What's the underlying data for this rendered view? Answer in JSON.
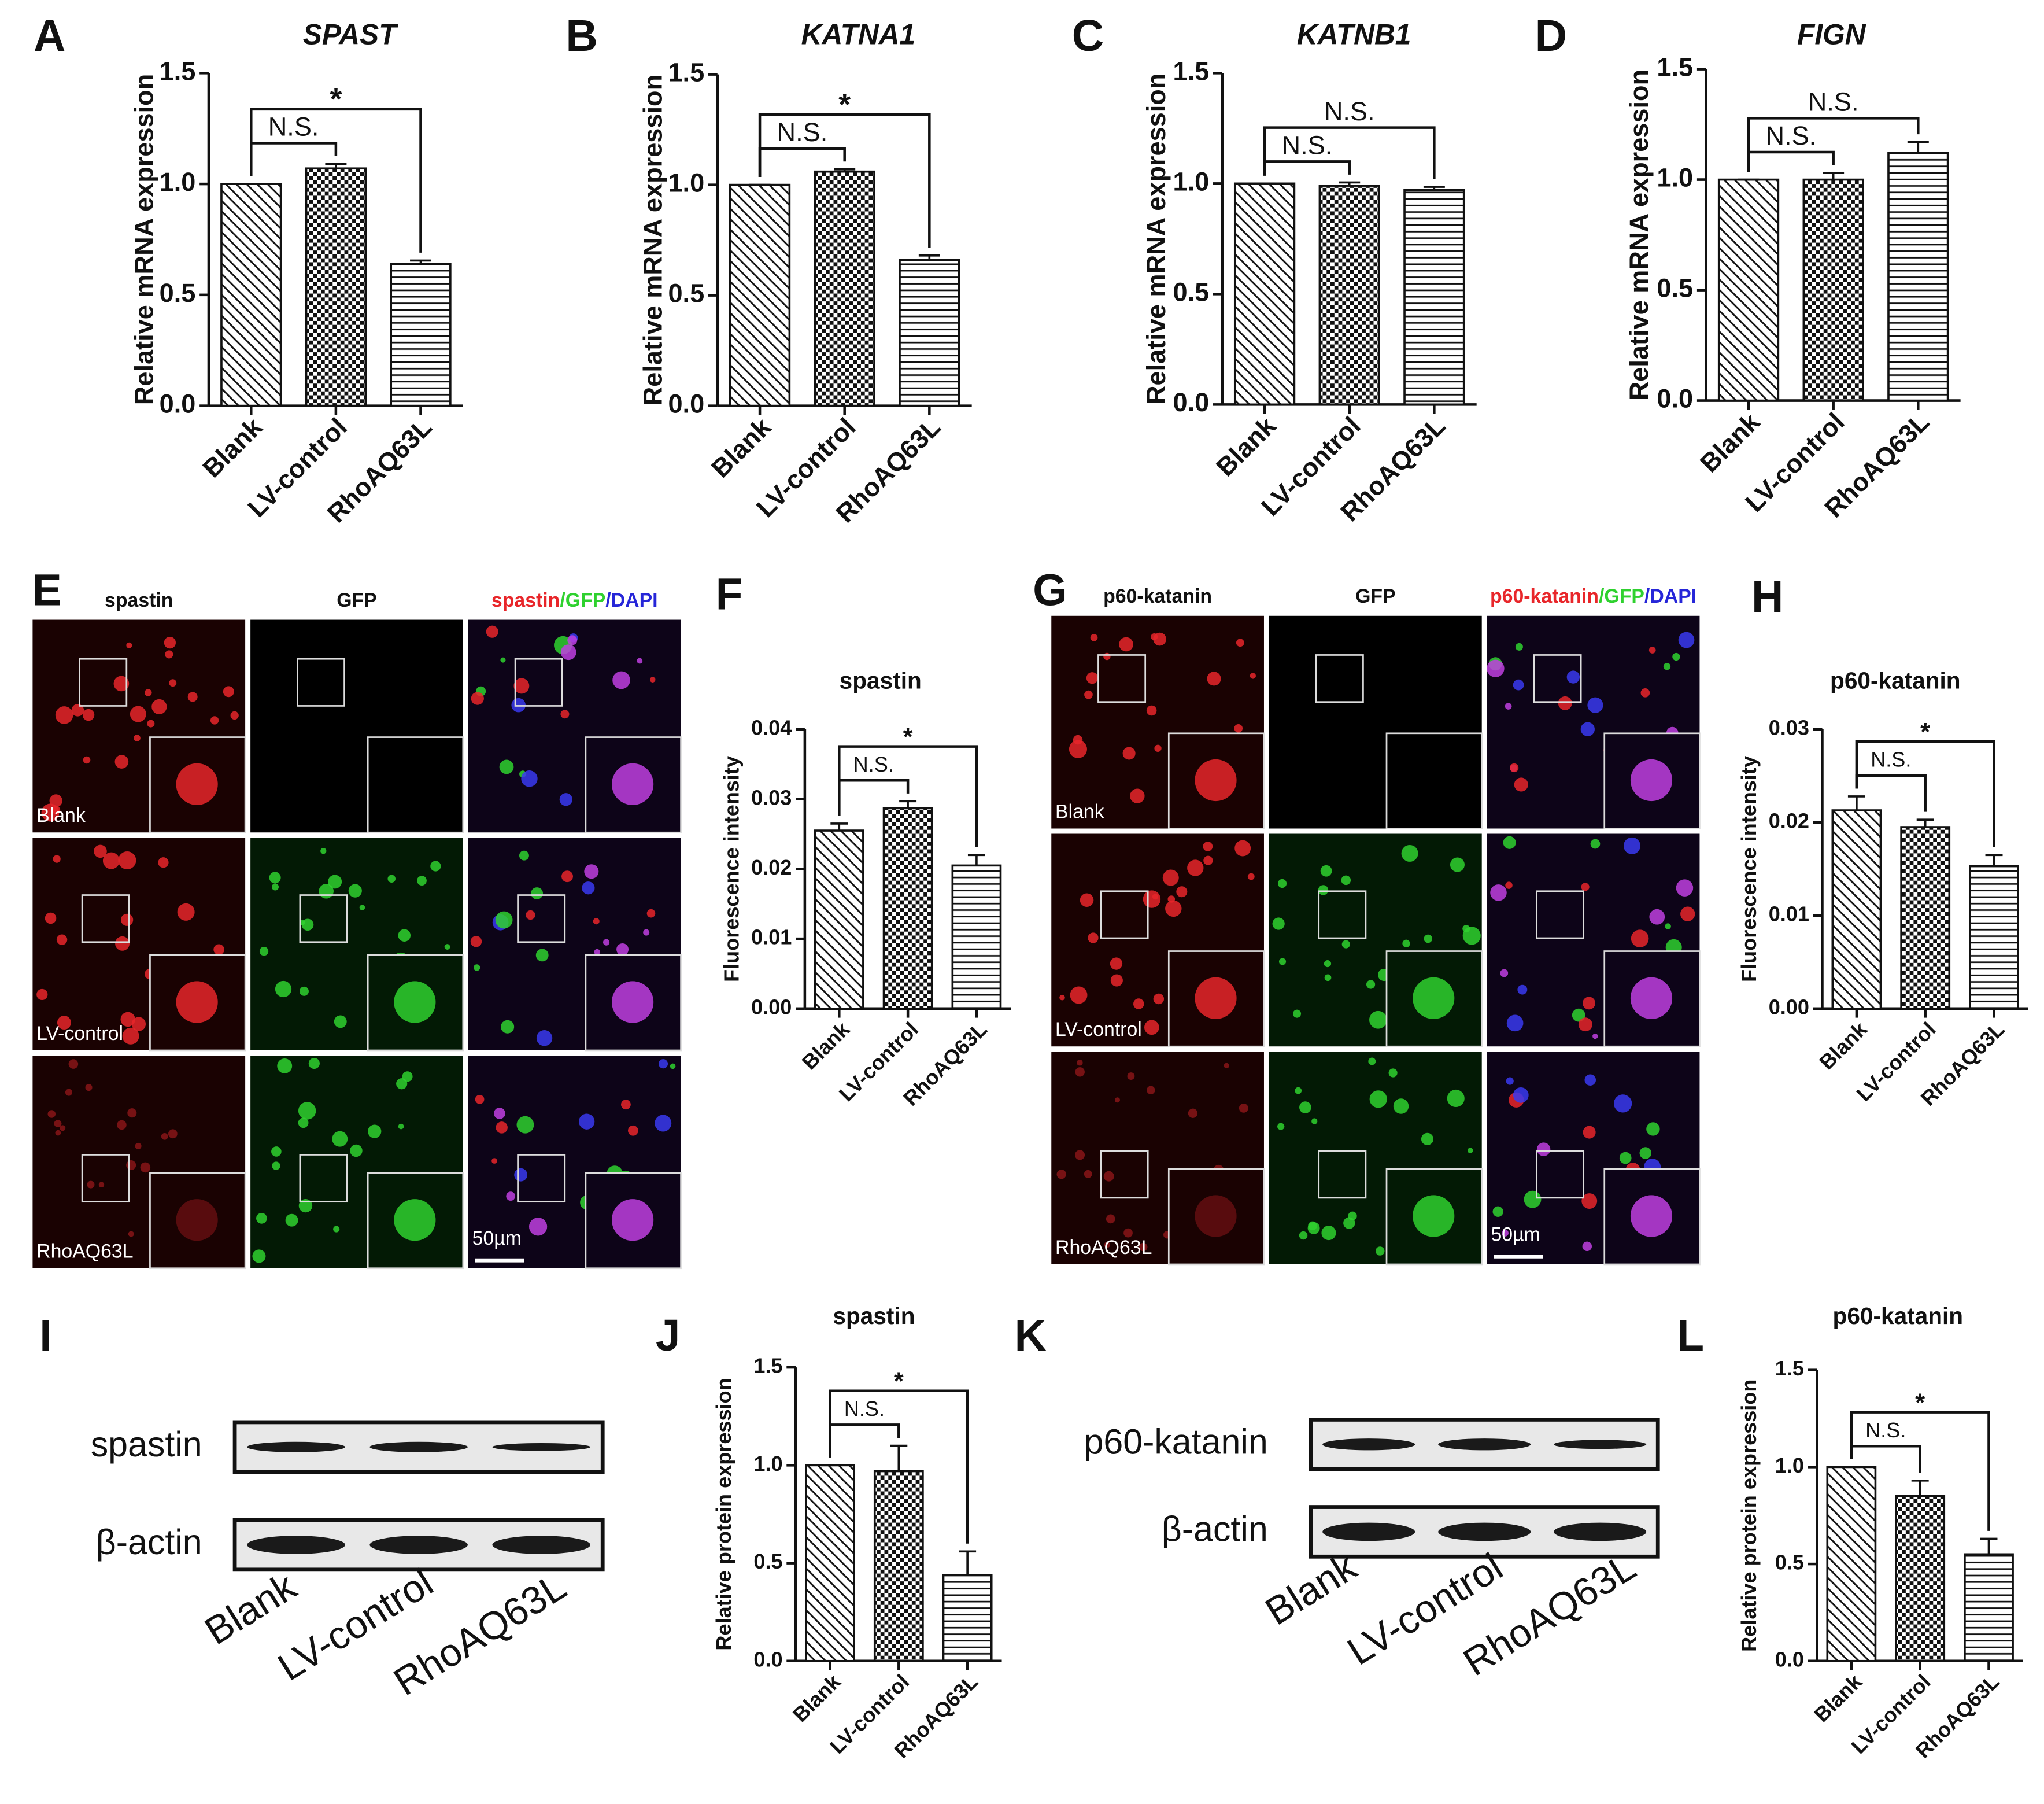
{
  "chart_data": [
    {
      "type": "bar",
      "letter": "A",
      "title": "SPAST",
      "title_style": "italic",
      "ylabel": "Relative mRNA expression",
      "categories": [
        "Blank",
        "LV-control",
        "RhoAQ63L"
      ],
      "values": [
        1.0,
        1.07,
        0.64
      ],
      "errors": [
        0,
        0.02,
        0.015
      ],
      "ylim": [
        0,
        1.5
      ],
      "yticks": [
        {
          "value": 0,
          "label": "0.0"
        },
        0.5,
        {
          "value": 1,
          "label": "1.0"
        },
        1.5
      ],
      "patterns": [
        "diagonal",
        "checker",
        "horizontal"
      ],
      "comparisons": [
        {
          "between": [
            "Blank",
            "LV-control"
          ],
          "label": "N.S."
        },
        {
          "between": [
            "Blank",
            "RhoAQ63L"
          ],
          "label": "*"
        }
      ]
    },
    {
      "type": "bar",
      "letter": "B",
      "title": "KATNA1",
      "title_style": "italic",
      "ylabel": "Relative mRNA expression",
      "categories": [
        "Blank",
        "LV-control",
        "RhoAQ63L"
      ],
      "values": [
        1.0,
        1.06,
        0.66
      ],
      "errors": [
        0,
        0.01,
        0.02
      ],
      "ylim": [
        0,
        1.5
      ],
      "yticks": [
        {
          "value": 0,
          "label": "0.0"
        },
        0.5,
        {
          "value": 1,
          "label": "1.0"
        },
        1.5
      ],
      "patterns": [
        "diagonal",
        "checker",
        "horizontal"
      ],
      "comparisons": [
        {
          "between": [
            "Blank",
            "LV-control"
          ],
          "label": "N.S."
        },
        {
          "between": [
            "Blank",
            "RhoAQ63L"
          ],
          "label": "*"
        }
      ]
    },
    {
      "type": "bar",
      "letter": "C",
      "title": "KATNB1",
      "title_style": "italic",
      "ylabel": "Relative mRNA expression",
      "categories": [
        "Blank",
        "LV-control",
        "RhoAQ63L"
      ],
      "values": [
        1.0,
        0.99,
        0.97
      ],
      "errors": [
        0,
        0.015,
        0.015
      ],
      "ylim": [
        0,
        1.5
      ],
      "yticks": [
        {
          "value": 0,
          "label": "0.0"
        },
        0.5,
        {
          "value": 1,
          "label": "1.0"
        },
        1.5
      ],
      "patterns": [
        "diagonal",
        "checker",
        "horizontal"
      ],
      "comparisons": [
        {
          "between": [
            "Blank",
            "LV-control"
          ],
          "label": "N.S."
        },
        {
          "between": [
            "Blank",
            "RhoAQ63L"
          ],
          "label": "N.S."
        }
      ]
    },
    {
      "type": "bar",
      "letter": "D",
      "title": "FIGN",
      "title_style": "italic",
      "ylabel": "Relative mRNA expression",
      "categories": [
        "Blank",
        "LV-control",
        "RhoAQ63L"
      ],
      "values": [
        1.0,
        1.0,
        1.12
      ],
      "errors": [
        0,
        0.03,
        0.05
      ],
      "ylim": [
        0,
        1.5
      ],
      "yticks": [
        {
          "value": 0,
          "label": "0.0"
        },
        0.5,
        {
          "value": 1,
          "label": "1.0"
        },
        1.5
      ],
      "patterns": [
        "diagonal",
        "checker",
        "horizontal"
      ],
      "comparisons": [
        {
          "between": [
            "Blank",
            "LV-control"
          ],
          "label": "N.S."
        },
        {
          "between": [
            "Blank",
            "RhoAQ63L"
          ],
          "label": "N.S."
        }
      ]
    },
    {
      "type": "bar",
      "letter": "F",
      "title": "spastin",
      "title_style": "bold",
      "ylabel": "Fluorescence intensity",
      "categories": [
        "Blank",
        "LV-control",
        "RhoAQ63L"
      ],
      "values": [
        0.0255,
        0.0287,
        0.0205
      ],
      "errors": [
        0.001,
        0.001,
        0.0015
      ],
      "ylim": [
        0,
        0.04
      ],
      "yticks": [
        {
          "value": 0,
          "label": "0.00"
        },
        0.01,
        0.02,
        0.03,
        0.04
      ],
      "patterns": [
        "diagonal",
        "checker",
        "horizontal"
      ],
      "comparisons": [
        {
          "between": [
            "Blank",
            "LV-control"
          ],
          "label": "N.S."
        },
        {
          "between": [
            "Blank",
            "RhoAQ63L"
          ],
          "label": "*"
        }
      ]
    },
    {
      "type": "bar",
      "letter": "H",
      "title": "p60-katanin",
      "title_style": "bold",
      "ylabel": "Fluorescence intensity",
      "categories": [
        "Blank",
        "LV-control",
        "RhoAQ63L"
      ],
      "values": [
        0.0213,
        0.0195,
        0.0153
      ],
      "errors": [
        0.0015,
        0.0008,
        0.0012
      ],
      "ylim": [
        0,
        0.03
      ],
      "yticks": [
        {
          "value": 0,
          "label": "0.00"
        },
        0.01,
        0.02,
        0.03
      ],
      "patterns": [
        "diagonal",
        "checker",
        "horizontal"
      ],
      "comparisons": [
        {
          "between": [
            "Blank",
            "LV-control"
          ],
          "label": "N.S."
        },
        {
          "between": [
            "Blank",
            "RhoAQ63L"
          ],
          "label": "*"
        }
      ]
    },
    {
      "type": "bar",
      "letter": "J",
      "title": "spastin",
      "title_style": "bold",
      "ylabel": "Relative protein expression",
      "categories": [
        "Blank",
        "LV-control",
        "RhoAQ63L"
      ],
      "values": [
        1.0,
        0.97,
        0.44
      ],
      "errors": [
        0,
        0.13,
        0.12
      ],
      "ylim": [
        0,
        1.5
      ],
      "yticks": [
        {
          "value": 0,
          "label": "0.0"
        },
        0.5,
        {
          "value": 1,
          "label": "1.0"
        },
        1.5
      ],
      "patterns": [
        "diagonal",
        "checker",
        "horizontal"
      ],
      "comparisons": [
        {
          "between": [
            "Blank",
            "LV-control"
          ],
          "label": "N.S."
        },
        {
          "between": [
            "Blank",
            "RhoAQ63L"
          ],
          "label": "*"
        }
      ]
    },
    {
      "type": "bar",
      "letter": "L",
      "title": "p60-katanin",
      "title_style": "bold",
      "ylabel": "Relative protein expression",
      "categories": [
        "Blank",
        "LV-control",
        "RhoAQ63L"
      ],
      "values": [
        1.0,
        0.85,
        0.55
      ],
      "errors": [
        0,
        0.08,
        0.08
      ],
      "ylim": [
        0,
        1.5
      ],
      "yticks": [
        {
          "value": 0,
          "label": "0.0"
        },
        0.5,
        {
          "value": 1,
          "label": "1.0"
        },
        1.5
      ],
      "patterns": [
        "diagonal",
        "checker",
        "horizontal"
      ],
      "comparisons": [
        {
          "between": [
            "Blank",
            "LV-control"
          ],
          "label": "N.S."
        },
        {
          "between": [
            "Blank",
            "RhoAQ63L"
          ],
          "label": "*"
        }
      ]
    }
  ],
  "microscopy": [
    {
      "letter": "E",
      "channels": [
        {
          "text": "spastin",
          "color": "#e8262a"
        },
        {
          "text": "GFP",
          "color": "#2fd12f"
        }
      ],
      "merged": [
        {
          "text": "spastin",
          "color": "#e8262a"
        },
        {
          "text": "GFP",
          "color": "#2fd12f"
        },
        {
          "text": "DAPI",
          "color": "#2626d8"
        }
      ],
      "separator": "/",
      "rows": [
        "Blank",
        "LV-control",
        "RhoAQ63L"
      ],
      "scale_bar": "50µm"
    },
    {
      "letter": "G",
      "channels": [
        {
          "text": "p60-katanin",
          "color": "#e8262a"
        },
        {
          "text": "GFP",
          "color": "#2fd12f"
        }
      ],
      "merged": [
        {
          "text": "p60-katanin",
          "color": "#e8262a"
        },
        {
          "text": "GFP",
          "color": "#2fd12f"
        },
        {
          "text": "DAPI",
          "color": "#2626d8"
        }
      ],
      "separator": "/",
      "rows": [
        "Blank",
        "LV-control",
        "RhoAQ63L"
      ],
      "scale_bar": "50µm"
    }
  ],
  "blots": [
    {
      "letter": "I",
      "bands": [
        "spastin",
        "β-actin"
      ],
      "lanes": [
        "Blank",
        "LV-control",
        "RhoAQ63L"
      ]
    },
    {
      "letter": "K",
      "bands": [
        "p60-katanin",
        "β-actin"
      ],
      "lanes": [
        "Blank",
        "LV-control",
        "RhoAQ63L"
      ]
    }
  ]
}
